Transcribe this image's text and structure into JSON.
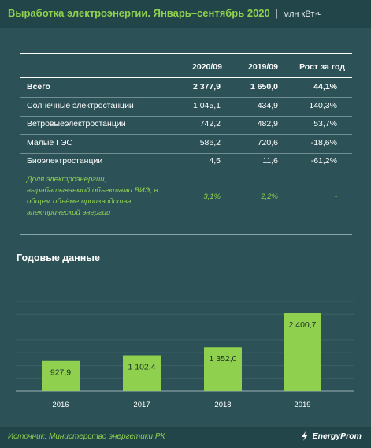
{
  "header": {
    "title": "Выработка электроэнергии. Январь–сентябрь 2020",
    "separator": "|",
    "units": "млн кВт·ч"
  },
  "table": {
    "columns": [
      "2020/09",
      "2019/09",
      "Рост за год"
    ],
    "rows": [
      {
        "label": "Всего",
        "v2020": "2 377,9",
        "v2019": "1 650,0",
        "growth": "44,1%",
        "bold": true
      },
      {
        "label": "Солнечные электростанции",
        "v2020": "1 045,1",
        "v2019": "434,9",
        "growth": "140,3%",
        "bold": false
      },
      {
        "label": "Ветровыеэлектростанции",
        "v2020": "742,2",
        "v2019": "482,9",
        "growth": "53,7%",
        "bold": false
      },
      {
        "label": "Малые ГЭС",
        "v2020": "586,2",
        "v2019": "720,6",
        "growth": "-18,6%",
        "bold": false
      },
      {
        "label": "Биоэлектростанции",
        "v2020": "4,5",
        "v2019": "11,6",
        "growth": "-61,2%",
        "bold": false
      }
    ],
    "note": {
      "label": "Доля электроэнергии, вырабатываемой объектами ВИЭ, в общем объёме производства электрической энергии",
      "v2020": "3,1%",
      "v2019": "2,2%",
      "growth": "-"
    }
  },
  "chart_data": {
    "type": "bar",
    "title": "Годовые данные",
    "categories": [
      "2016",
      "2017",
      "2018",
      "2019"
    ],
    "values": [
      927.9,
      1102.4,
      1352.0,
      2400.7
    ],
    "value_labels": [
      "927,9",
      "1 102,4",
      "1 352,0",
      "2 400,7"
    ],
    "ylim": [
      0,
      2600
    ],
    "grid": true,
    "bar_color": "#8fd14f"
  },
  "footer": {
    "source": "Источник: Министерство энергетики РК",
    "logo": "EnergyProm"
  },
  "colors": {
    "background": "#2c5157",
    "header_bg": "#224549",
    "accent": "#8fd14f"
  }
}
